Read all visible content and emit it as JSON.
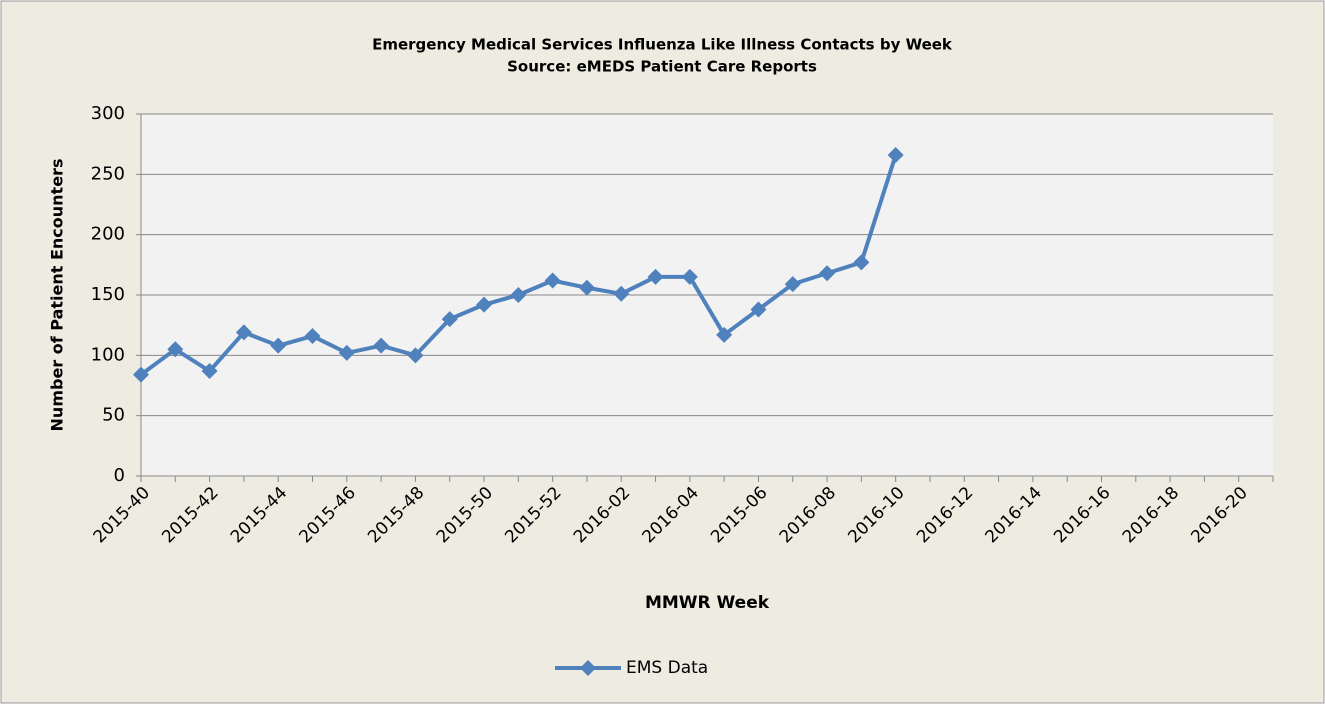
{
  "chart_data": {
    "type": "line",
    "title": "Emergency Medical Services Influenza Like Illness Contacts by Week",
    "subtitle": "Source: eMEDS Patient Care Reports",
    "x_label": "MMWR Week",
    "y_label": "Number of Patient Encounters",
    "categories": [
      "2015-40",
      null,
      "2015-42",
      null,
      "2015-44",
      null,
      "2015-46",
      null,
      "2015-48",
      null,
      "2015-50",
      null,
      "2015-52",
      null,
      "2016-02",
      null,
      "2016-04",
      null,
      "2015-06",
      null,
      "2016-08",
      null,
      "2016-10",
      null,
      "2016-12",
      null,
      "2016-14",
      null,
      "2016-16",
      null,
      "2016-18",
      null,
      "2016-20",
      null
    ],
    "series": [
      {
        "name": "EMS Data",
        "color": "#4f81bd",
        "values": [
          84,
          105,
          87,
          119,
          108,
          116,
          102,
          108,
          100,
          130,
          142,
          150,
          162,
          156,
          151,
          165,
          165,
          117,
          138,
          159,
          168,
          177,
          266,
          null,
          null,
          null,
          null,
          null,
          null,
          null,
          null,
          null,
          null,
          null
        ]
      }
    ],
    "ylim": [
      0,
      300
    ],
    "yticks": [
      0,
      50,
      100,
      150,
      200,
      250,
      300
    ],
    "grid": true,
    "legend": "bottom"
  }
}
